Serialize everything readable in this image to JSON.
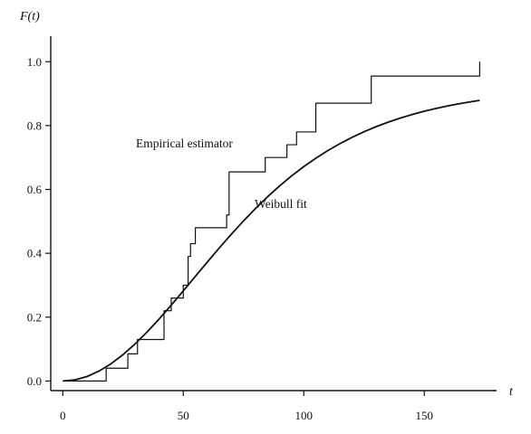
{
  "chart_data": {
    "type": "line",
    "ylabel": "F(t)",
    "xlabel": "t",
    "xlim": [
      -5,
      180
    ],
    "ylim": [
      -0.03,
      1.08
    ],
    "xticks": [
      0,
      50,
      100,
      150
    ],
    "yticks": [
      0.0,
      0.2,
      0.4,
      0.6,
      0.8,
      1.0
    ],
    "xtick_labels": [
      "0",
      "50",
      "100",
      "150"
    ],
    "ytick_labels": [
      "0.0",
      "0.2",
      "0.4",
      "0.6",
      "0.8",
      "1.0"
    ],
    "grid": false,
    "series": [
      {
        "name": "Empirical estimator",
        "style": "step",
        "x": [
          0,
          18,
          18,
          27,
          27,
          31,
          31,
          34,
          34,
          42,
          42,
          45,
          45,
          48,
          48,
          50,
          50,
          52,
          52,
          53,
          53,
          55,
          55,
          68,
          68,
          69,
          69,
          84,
          84,
          93,
          93,
          97,
          97,
          100,
          100,
          105,
          105,
          128,
          128,
          173,
          173
        ],
        "y": [
          0.0,
          0.0,
          0.04,
          0.04,
          0.085,
          0.085,
          0.13,
          0.13,
          0.13,
          0.13,
          0.22,
          0.22,
          0.26,
          0.26,
          0.26,
          0.26,
          0.3,
          0.3,
          0.39,
          0.39,
          0.43,
          0.43,
          0.48,
          0.48,
          0.52,
          0.52,
          0.655,
          0.655,
          0.7,
          0.7,
          0.74,
          0.74,
          0.78,
          0.78,
          0.78,
          0.78,
          0.87,
          0.87,
          0.955,
          0.955,
          1.0
        ]
      },
      {
        "name": "Weibull fit",
        "style": "smooth",
        "x": [
          0,
          5,
          10,
          15,
          20,
          25,
          30,
          35,
          40,
          45,
          50,
          55,
          60,
          65,
          70,
          75,
          80,
          85,
          90,
          95,
          100,
          105,
          110,
          115,
          120,
          125,
          130,
          135,
          140,
          145,
          150,
          155,
          160,
          165,
          170,
          173
        ],
        "y": [
          0.0,
          0.0035,
          0.0139,
          0.0309,
          0.054,
          0.0826,
          0.1161,
          0.1537,
          0.1945,
          0.2376,
          0.2823,
          0.3276,
          0.3728,
          0.4172,
          0.4602,
          0.5014,
          0.5405,
          0.5771,
          0.6112,
          0.6426,
          0.6715,
          0.6978,
          0.7217,
          0.7434,
          0.763,
          0.7806,
          0.7965,
          0.8107,
          0.8234,
          0.8347,
          0.8449,
          0.8539,
          0.8619,
          0.869,
          0.8754,
          0.8789
        ]
      }
    ],
    "annotations": [
      {
        "text": "Empirical estimator",
        "x": 48,
        "y": 0.69
      },
      {
        "text": "Weibull fit",
        "x": 77,
        "y": 0.525
      }
    ]
  }
}
